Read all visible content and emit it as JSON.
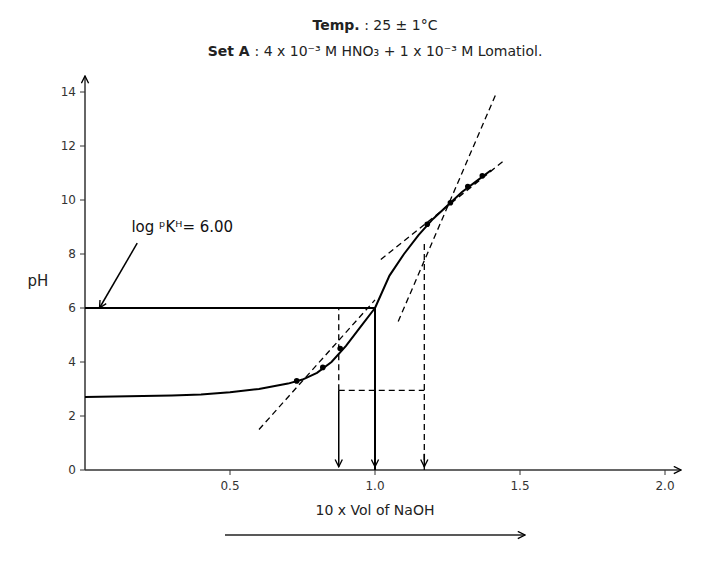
{
  "chart_data": {
    "type": "line",
    "title": "Temp. : 25 ± 1°C",
    "subtitle": "Set  A  : 4 x 10⁻³ M HNO₃ + 1 x 10⁻³ M Lomatiol.",
    "x_label": "10 x Vol of NaOH",
    "y_label": "pH",
    "xlim": [
      0,
      2.0
    ],
    "ylim": [
      0,
      14
    ],
    "xticks": [
      0.5,
      {
        "value": 1.0,
        "label": "1.0"
      },
      1.5,
      {
        "value": 2.0,
        "label": "2.0"
      }
    ],
    "yticks": [
      0,
      2,
      4,
      6,
      8,
      10,
      12,
      14
    ],
    "grid": false,
    "series": [
      {
        "type": "line",
        "line_style": "solid",
        "color": "#000000",
        "x": [
          0.0,
          0.1,
          0.2,
          0.3,
          0.4,
          0.5,
          0.6,
          0.65,
          0.7,
          0.75,
          0.8,
          0.85,
          0.9,
          0.95,
          1.0
        ],
        "values": [
          2.7,
          2.72,
          2.74,
          2.76,
          2.8,
          2.88,
          3.0,
          3.1,
          3.2,
          3.35,
          3.6,
          4.0,
          4.6,
          5.3,
          6.0
        ]
      },
      {
        "type": "line",
        "line_style": "solid",
        "color": "#000000",
        "x": [
          1.0,
          1.05,
          1.1,
          1.15,
          1.2,
          1.25,
          1.3,
          1.35,
          1.4
        ],
        "values": [
          6.0,
          7.2,
          8.0,
          8.7,
          9.3,
          9.8,
          10.3,
          10.7,
          11.1
        ]
      },
      {
        "type": "scatter",
        "marker": "dot",
        "color": "#000000",
        "x": [
          0.73,
          0.82,
          0.88
        ],
        "values": [
          3.3,
          3.8,
          4.5
        ]
      },
      {
        "type": "scatter",
        "marker": "dot",
        "color": "#000000",
        "x": [
          1.18,
          1.26,
          1.32,
          1.37
        ],
        "values": [
          9.1,
          9.9,
          10.5,
          10.9
        ]
      },
      {
        "type": "line",
        "line_style": "dashed",
        "color": "#000000",
        "x": [
          0.6,
          1.0
        ],
        "values": [
          1.5,
          6.3
        ]
      },
      {
        "type": "line",
        "line_style": "dashed",
        "color": "#000000",
        "x": [
          1.08,
          1.42
        ],
        "values": [
          5.5,
          14.0
        ]
      },
      {
        "type": "line",
        "line_style": "dashed",
        "color": "#000000",
        "x": [
          1.02,
          1.45
        ],
        "values": [
          7.8,
          11.5
        ]
      },
      {
        "type": "line",
        "line_style": "solid",
        "color": "#000000",
        "x": [
          0.0,
          1.0
        ],
        "values": [
          6.0,
          6.0
        ]
      },
      {
        "type": "line",
        "line_style": "dashed",
        "color": "#000000",
        "x": [
          0.875,
          1.17
        ],
        "values": [
          2.95,
          2.95
        ]
      },
      {
        "type": "line",
        "line_style": "solid",
        "color": "#000000",
        "x": [
          1.0,
          1.0
        ],
        "values": [
          0.0,
          6.0
        ]
      },
      {
        "type": "line",
        "line_style": "dashed",
        "color": "#000000",
        "x": [
          0.875,
          0.875
        ],
        "values": [
          2.95,
          6.0
        ]
      },
      {
        "type": "line",
        "line_style": "dashed",
        "color": "#000000",
        "x": [
          1.17,
          1.17
        ],
        "values": [
          0,
          8.5
        ]
      },
      {
        "type": "arrow",
        "color": "#000000",
        "x": [
          0.875,
          0.875
        ],
        "values": [
          2.95,
          0.12
        ]
      },
      {
        "type": "arrow",
        "color": "#000000",
        "x": [
          1.0,
          1.0
        ],
        "values": [
          0.6,
          0.12
        ]
      },
      {
        "type": "arrow",
        "color": "#000000",
        "x": [
          1.17,
          1.17
        ],
        "values": [
          0.6,
          0.12
        ]
      },
      {
        "type": "arrow",
        "color": "#000000",
        "x": [
          0.18,
          0.05
        ],
        "values": [
          8.4,
          6.0
        ]
      }
    ],
    "annotations": [
      {
        "text": "log ᵖKᴴ= 6.00",
        "x": 0.16,
        "y": 8.8
      }
    ]
  }
}
